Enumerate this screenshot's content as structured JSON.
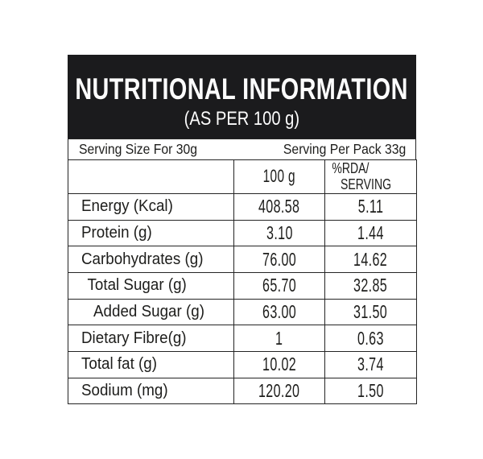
{
  "header": {
    "title": "NUTRITIONAL INFORMATION",
    "subtitle": "(AS PER 100 g)"
  },
  "serving": {
    "size_text": "Serving Size For 30g",
    "per_pack_text": "Serving Per Pack 33g"
  },
  "columns": {
    "nutrient": "",
    "per_100g": "100 g",
    "rda_line1": "%RDA/",
    "rda_line2": "SERVING"
  },
  "rows": [
    {
      "label": "Energy (Kcal)",
      "per_100g": "408.58",
      "rda_per_serving": "5.11"
    },
    {
      "label": "Protein (g)",
      "per_100g": "3.10",
      "rda_per_serving": "1.44"
    },
    {
      "label": "Carbohydrates (g)",
      "per_100g": "76.00",
      "rda_per_serving": "14.62"
    },
    {
      "label": "Total Sugar (g)",
      "per_100g": "65.70",
      "rda_per_serving": "32.85"
    },
    {
      "label": "Added Sugar (g)",
      "per_100g": "63.00",
      "rda_per_serving": "31.50"
    },
    {
      "label": "Dietary Fibre(g)",
      "per_100g": "1",
      "rda_per_serving": "0.63"
    },
    {
      "label": "Total fat (g)",
      "per_100g": "10.02",
      "rda_per_serving": "3.74"
    },
    {
      "label": "Sodium (mg)",
      "per_100g": "120.20",
      "rda_per_serving": "1.50"
    }
  ],
  "colors": {
    "header_bg": "#1b1b1d",
    "header_text": "#fdfdfd",
    "body_text": "#1d1d1b",
    "border": "#242424",
    "background": "#ffffff"
  }
}
